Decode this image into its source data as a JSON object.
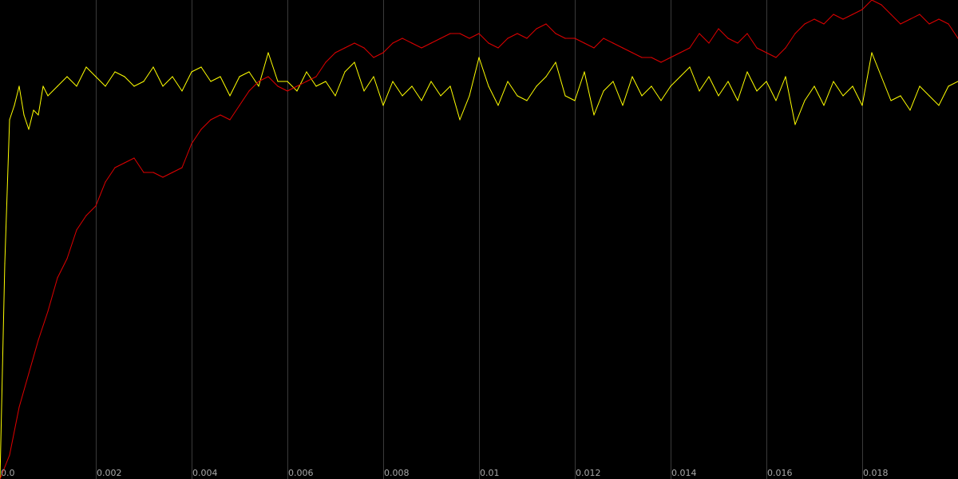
{
  "chart_data": {
    "type": "line",
    "title": "",
    "xlabel": "",
    "ylabel": "",
    "xlim": [
      0,
      0.02
    ],
    "ylim": [
      0,
      1
    ],
    "grid": {
      "vertical": true,
      "horizontal": false
    },
    "background_color": "#000000",
    "grid_color": "#3a3a3a",
    "tick_label_color": "#a8a8a8",
    "x_ticks": [
      {
        "value": 0,
        "label": "0.0"
      },
      {
        "value": 0.002,
        "label": "0.002"
      },
      {
        "value": 0.004,
        "label": "0.004"
      },
      {
        "value": 0.006,
        "label": "0.006"
      },
      {
        "value": 0.008,
        "label": "0.008"
      },
      {
        "value": 0.01,
        "label": "0.01"
      },
      {
        "value": 0.012,
        "label": "0.012"
      },
      {
        "value": 0.014,
        "label": "0.014"
      },
      {
        "value": 0.016,
        "label": "0.016"
      },
      {
        "value": 0.018,
        "label": "0.018"
      }
    ],
    "series": [
      {
        "color": "#ffff00",
        "x": [
          0,
          0.0001,
          0.0002,
          0.0003,
          0.0004,
          0.0005,
          0.0006,
          0.0007,
          0.0008,
          0.0009,
          0.001,
          0.0012,
          0.0014,
          0.0016,
          0.0018,
          0.002,
          0.0022,
          0.0024,
          0.0026,
          0.0028,
          0.003,
          0.0032,
          0.0034,
          0.0036,
          0.0038,
          0.004,
          0.0042,
          0.0044,
          0.0046,
          0.0048,
          0.005,
          0.0052,
          0.0054,
          0.0056,
          0.0058,
          0.006,
          0.0062,
          0.0064,
          0.0066,
          0.0068,
          0.007,
          0.0072,
          0.0074,
          0.0076,
          0.0078,
          0.008,
          0.0082,
          0.0084,
          0.0086,
          0.0088,
          0.009,
          0.0092,
          0.0094,
          0.0096,
          0.0098,
          0.01,
          0.0102,
          0.0104,
          0.0106,
          0.0108,
          0.011,
          0.0112,
          0.0114,
          0.0116,
          0.0118,
          0.012,
          0.0122,
          0.0124,
          0.0126,
          0.0128,
          0.013,
          0.0132,
          0.0134,
          0.0136,
          0.0138,
          0.014,
          0.0142,
          0.0144,
          0.0146,
          0.0148,
          0.015,
          0.0152,
          0.0154,
          0.0156,
          0.0158,
          0.016,
          0.0162,
          0.0164,
          0.0166,
          0.0168,
          0.017,
          0.0172,
          0.0174,
          0.0176,
          0.0178,
          0.018,
          0.0182,
          0.0184,
          0.0186,
          0.0188,
          0.019,
          0.0192,
          0.0194,
          0.0196,
          0.0198,
          0.02
        ],
        "y": [
          0,
          0.45,
          0.75,
          0.78,
          0.82,
          0.76,
          0.73,
          0.77,
          0.76,
          0.82,
          0.8,
          0.82,
          0.84,
          0.82,
          0.86,
          0.84,
          0.82,
          0.85,
          0.84,
          0.82,
          0.83,
          0.86,
          0.82,
          0.84,
          0.81,
          0.85,
          0.86,
          0.83,
          0.84,
          0.8,
          0.84,
          0.85,
          0.82,
          0.89,
          0.83,
          0.83,
          0.81,
          0.85,
          0.82,
          0.83,
          0.8,
          0.85,
          0.87,
          0.81,
          0.84,
          0.78,
          0.83,
          0.8,
          0.82,
          0.79,
          0.83,
          0.8,
          0.82,
          0.75,
          0.8,
          0.88,
          0.82,
          0.78,
          0.83,
          0.8,
          0.79,
          0.82,
          0.84,
          0.87,
          0.8,
          0.79,
          0.85,
          0.76,
          0.81,
          0.83,
          0.78,
          0.84,
          0.8,
          0.82,
          0.79,
          0.82,
          0.84,
          0.86,
          0.81,
          0.84,
          0.8,
          0.83,
          0.79,
          0.85,
          0.81,
          0.83,
          0.79,
          0.84,
          0.74,
          0.79,
          0.82,
          0.78,
          0.83,
          0.8,
          0.82,
          0.78,
          0.89,
          0.84,
          0.79,
          0.8,
          0.77,
          0.82,
          0.8,
          0.78,
          0.82,
          0.83
        ]
      },
      {
        "color": "#e00000",
        "x": [
          0,
          0.0002,
          0.0004,
          0.0006,
          0.0008,
          0.001,
          0.0012,
          0.0014,
          0.0016,
          0.0018,
          0.002,
          0.0022,
          0.0024,
          0.0026,
          0.0028,
          0.003,
          0.0032,
          0.0034,
          0.0036,
          0.0038,
          0.004,
          0.0042,
          0.0044,
          0.0046,
          0.0048,
          0.005,
          0.0052,
          0.0054,
          0.0056,
          0.0058,
          0.006,
          0.0062,
          0.0064,
          0.0066,
          0.0068,
          0.007,
          0.0072,
          0.0074,
          0.0076,
          0.0078,
          0.008,
          0.0082,
          0.0084,
          0.0086,
          0.0088,
          0.009,
          0.0092,
          0.0094,
          0.0096,
          0.0098,
          0.01,
          0.0102,
          0.0104,
          0.0106,
          0.0108,
          0.011,
          0.0112,
          0.0114,
          0.0116,
          0.0118,
          0.012,
          0.0122,
          0.0124,
          0.0126,
          0.0128,
          0.013,
          0.0132,
          0.0134,
          0.0136,
          0.0138,
          0.014,
          0.0142,
          0.0144,
          0.0146,
          0.0148,
          0.015,
          0.0152,
          0.0154,
          0.0156,
          0.0158,
          0.016,
          0.0162,
          0.0164,
          0.0166,
          0.0168,
          0.017,
          0.0172,
          0.0174,
          0.0176,
          0.0178,
          0.018,
          0.0182,
          0.0184,
          0.0186,
          0.0188,
          0.019,
          0.0192,
          0.0194,
          0.0196,
          0.0198,
          0.02
        ],
        "y": [
          0,
          0.05,
          0.15,
          0.22,
          0.29,
          0.35,
          0.42,
          0.46,
          0.52,
          0.55,
          0.57,
          0.62,
          0.65,
          0.66,
          0.67,
          0.64,
          0.64,
          0.63,
          0.64,
          0.65,
          0.7,
          0.73,
          0.75,
          0.76,
          0.75,
          0.78,
          0.81,
          0.83,
          0.84,
          0.82,
          0.81,
          0.82,
          0.83,
          0.84,
          0.87,
          0.89,
          0.9,
          0.91,
          0.9,
          0.88,
          0.89,
          0.91,
          0.92,
          0.91,
          0.9,
          0.91,
          0.92,
          0.93,
          0.93,
          0.92,
          0.93,
          0.91,
          0.9,
          0.92,
          0.93,
          0.92,
          0.94,
          0.95,
          0.93,
          0.92,
          0.92,
          0.91,
          0.9,
          0.92,
          0.91,
          0.9,
          0.89,
          0.88,
          0.88,
          0.87,
          0.88,
          0.89,
          0.9,
          0.93,
          0.91,
          0.94,
          0.92,
          0.91,
          0.93,
          0.9,
          0.89,
          0.88,
          0.9,
          0.93,
          0.95,
          0.96,
          0.95,
          0.97,
          0.96,
          0.97,
          0.98,
          1.0,
          0.99,
          0.97,
          0.95,
          0.96,
          0.97,
          0.95,
          0.96,
          0.95,
          0.92
        ]
      }
    ]
  }
}
